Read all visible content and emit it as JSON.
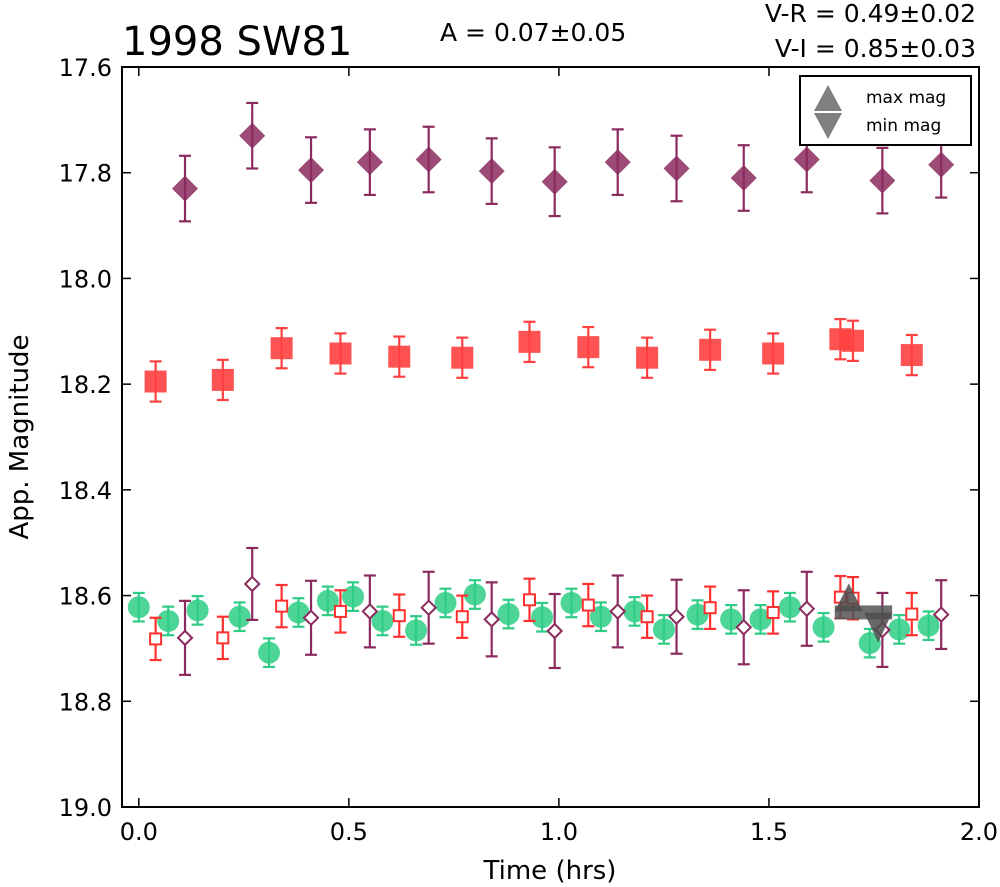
{
  "title": "1998 SW81",
  "annotations": {
    "amplitude": "A  = 0.07±0.05",
    "v_r": "V-R = 0.49±0.02",
    "v_i": "V-I  = 0.85±0.03"
  },
  "chart_data": {
    "type": "scatter",
    "title": "1998 SW81",
    "xlabel": "Time (hrs)",
    "ylabel": "App. Magnitude",
    "xlim": [
      -0.04,
      2.0
    ],
    "ylim": [
      17.6,
      19.0
    ],
    "y_inverted": true,
    "grid": false,
    "legend_position": "top-right",
    "x_ticks": [
      "0.0",
      "0.5",
      "1.0",
      "1.5",
      "2.0"
    ],
    "y_ticks": [
      "17.6",
      "17.8",
      "18.0",
      "18.2",
      "18.4",
      "18.6",
      "18.8",
      "19.0"
    ],
    "legend": [
      {
        "label": "max mag",
        "marker": "triangle-up",
        "color": "#808080"
      },
      {
        "label": "min mag",
        "marker": "triangle-down",
        "color": "#808080"
      }
    ],
    "series": [
      {
        "id": "i-band-filled",
        "marker": "diamond-filled",
        "color": "#8b2a5e",
        "points": [
          {
            "x": 0.11,
            "y": 17.83,
            "err": 0.062
          },
          {
            "x": 0.27,
            "y": 17.73,
            "err": 0.062
          },
          {
            "x": 0.41,
            "y": 17.795,
            "err": 0.062
          },
          {
            "x": 0.55,
            "y": 17.78,
            "err": 0.062
          },
          {
            "x": 0.69,
            "y": 17.775,
            "err": 0.062
          },
          {
            "x": 0.84,
            "y": 17.797,
            "err": 0.062
          },
          {
            "x": 0.99,
            "y": 17.817,
            "err": 0.065
          },
          {
            "x": 1.14,
            "y": 17.78,
            "err": 0.062
          },
          {
            "x": 1.28,
            "y": 17.792,
            "err": 0.062
          },
          {
            "x": 1.44,
            "y": 17.81,
            "err": 0.062
          },
          {
            "x": 1.59,
            "y": 17.775,
            "err": 0.062
          },
          {
            "x": 1.77,
            "y": 17.815,
            "err": 0.062
          },
          {
            "x": 1.91,
            "y": 17.785,
            "err": 0.062
          }
        ]
      },
      {
        "id": "r-band-filled",
        "marker": "square-filled",
        "color": "#ff4040",
        "points": [
          {
            "x": 0.04,
            "y": 18.195,
            "err": 0.038
          },
          {
            "x": 0.2,
            "y": 18.192,
            "err": 0.038
          },
          {
            "x": 0.34,
            "y": 18.132,
            "err": 0.038
          },
          {
            "x": 0.48,
            "y": 18.142,
            "err": 0.038
          },
          {
            "x": 0.62,
            "y": 18.148,
            "err": 0.038
          },
          {
            "x": 0.77,
            "y": 18.15,
            "err": 0.038
          },
          {
            "x": 0.93,
            "y": 18.12,
            "err": 0.038
          },
          {
            "x": 1.07,
            "y": 18.13,
            "err": 0.038
          },
          {
            "x": 1.21,
            "y": 18.15,
            "err": 0.038
          },
          {
            "x": 1.36,
            "y": 18.135,
            "err": 0.038
          },
          {
            "x": 1.51,
            "y": 18.142,
            "err": 0.038
          },
          {
            "x": 1.67,
            "y": 18.115,
            "err": 0.038
          },
          {
            "x": 1.7,
            "y": 18.118,
            "err": 0.038
          },
          {
            "x": 1.84,
            "y": 18.145,
            "err": 0.038
          }
        ]
      },
      {
        "id": "v-band",
        "marker": "circle-filled",
        "color": "#2ecc85",
        "points": [
          {
            "x": 0.0,
            "y": 18.622,
            "err": 0.027
          },
          {
            "x": 0.07,
            "y": 18.648,
            "err": 0.027
          },
          {
            "x": 0.14,
            "y": 18.628,
            "err": 0.027
          },
          {
            "x": 0.24,
            "y": 18.64,
            "err": 0.027
          },
          {
            "x": 0.31,
            "y": 18.708,
            "err": 0.027
          },
          {
            "x": 0.38,
            "y": 18.632,
            "err": 0.027
          },
          {
            "x": 0.45,
            "y": 18.61,
            "err": 0.027
          },
          {
            "x": 0.51,
            "y": 18.602,
            "err": 0.027
          },
          {
            "x": 0.58,
            "y": 18.648,
            "err": 0.027
          },
          {
            "x": 0.66,
            "y": 18.666,
            "err": 0.027
          },
          {
            "x": 0.73,
            "y": 18.614,
            "err": 0.027
          },
          {
            "x": 0.8,
            "y": 18.598,
            "err": 0.027
          },
          {
            "x": 0.88,
            "y": 18.635,
            "err": 0.027
          },
          {
            "x": 0.96,
            "y": 18.641,
            "err": 0.027
          },
          {
            "x": 1.03,
            "y": 18.614,
            "err": 0.027
          },
          {
            "x": 1.1,
            "y": 18.64,
            "err": 0.027
          },
          {
            "x": 1.18,
            "y": 18.63,
            "err": 0.027
          },
          {
            "x": 1.25,
            "y": 18.664,
            "err": 0.027
          },
          {
            "x": 1.33,
            "y": 18.636,
            "err": 0.027
          },
          {
            "x": 1.41,
            "y": 18.645,
            "err": 0.027
          },
          {
            "x": 1.48,
            "y": 18.645,
            "err": 0.027
          },
          {
            "x": 1.55,
            "y": 18.622,
            "err": 0.027
          },
          {
            "x": 1.63,
            "y": 18.66,
            "err": 0.027
          },
          {
            "x": 1.74,
            "y": 18.69,
            "err": 0.027
          },
          {
            "x": 1.81,
            "y": 18.664,
            "err": 0.027
          },
          {
            "x": 1.88,
            "y": 18.657,
            "err": 0.027
          }
        ]
      },
      {
        "id": "r-band-open",
        "marker": "square-open",
        "color": "#ff3030",
        "points": [
          {
            "x": 0.04,
            "y": 18.682,
            "err": 0.04
          },
          {
            "x": 0.2,
            "y": 18.68,
            "err": 0.04
          },
          {
            "x": 0.34,
            "y": 18.62,
            "err": 0.04
          },
          {
            "x": 0.48,
            "y": 18.63,
            "err": 0.04
          },
          {
            "x": 0.62,
            "y": 18.638,
            "err": 0.04
          },
          {
            "x": 0.77,
            "y": 18.64,
            "err": 0.04
          },
          {
            "x": 0.93,
            "y": 18.608,
            "err": 0.04
          },
          {
            "x": 1.07,
            "y": 18.618,
            "err": 0.04
          },
          {
            "x": 1.21,
            "y": 18.64,
            "err": 0.04
          },
          {
            "x": 1.36,
            "y": 18.623,
            "err": 0.04
          },
          {
            "x": 1.51,
            "y": 18.632,
            "err": 0.04
          },
          {
            "x": 1.67,
            "y": 18.603,
            "err": 0.04
          },
          {
            "x": 1.7,
            "y": 18.605,
            "err": 0.04
          },
          {
            "x": 1.84,
            "y": 18.635,
            "err": 0.04
          }
        ]
      },
      {
        "id": "i-band-open",
        "marker": "diamond-open",
        "color": "#8b2a5e",
        "points": [
          {
            "x": 0.11,
            "y": 18.68,
            "err": 0.07
          },
          {
            "x": 0.27,
            "y": 18.578,
            "err": 0.068
          },
          {
            "x": 0.41,
            "y": 18.642,
            "err": 0.07
          },
          {
            "x": 0.55,
            "y": 18.63,
            "err": 0.068
          },
          {
            "x": 0.69,
            "y": 18.623,
            "err": 0.068
          },
          {
            "x": 0.84,
            "y": 18.645,
            "err": 0.07
          },
          {
            "x": 0.99,
            "y": 18.667,
            "err": 0.07
          },
          {
            "x": 1.14,
            "y": 18.63,
            "err": 0.068
          },
          {
            "x": 1.28,
            "y": 18.64,
            "err": 0.07
          },
          {
            "x": 1.44,
            "y": 18.66,
            "err": 0.07
          },
          {
            "x": 1.59,
            "y": 18.625,
            "err": 0.07
          },
          {
            "x": 1.77,
            "y": 18.665,
            "err": 0.07
          },
          {
            "x": 1.91,
            "y": 18.636,
            "err": 0.065
          }
        ]
      }
    ],
    "extrema_markers": [
      {
        "label": "max mag",
        "marker": "triangle-up",
        "x": 1.69,
        "y": 18.63,
        "color": "#808080"
      },
      {
        "label": "min mag",
        "marker": "triangle-down",
        "x": 1.76,
        "y": 18.655,
        "color": "#808080"
      }
    ]
  }
}
